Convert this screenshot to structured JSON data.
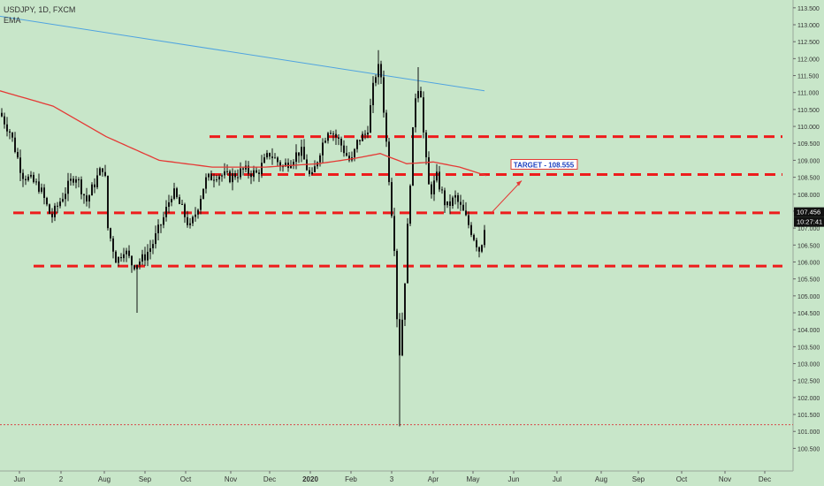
{
  "header": {
    "symbol_line": "USDJPY, 1D, FXCM",
    "indicator": "EMA"
  },
  "chart_data": {
    "type": "candlestick",
    "symbol": "USDJPY",
    "interval": "1D",
    "source": "FXCM",
    "ylim": [
      100.25,
      113.6
    ],
    "y_ticks": [
      "113.500",
      "113.000",
      "112.500",
      "112.000",
      "111.500",
      "111.000",
      "110.500",
      "110.000",
      "109.500",
      "109.000",
      "108.500",
      "108.000",
      "107.500",
      "107.000",
      "106.500",
      "106.000",
      "105.500",
      "105.000",
      "104.500",
      "104.000",
      "103.500",
      "103.000",
      "102.500",
      "102.000",
      "101.500",
      "101.000",
      "100.500"
    ],
    "x_ticks": [
      "Jun",
      "2",
      "Aug",
      "Sep",
      "Oct",
      "Nov",
      "Dec",
      "2020",
      "Feb",
      "3",
      "Apr",
      "May",
      "Jun",
      "Jul",
      "Aug",
      "Sep",
      "Oct",
      "Nov",
      "Dec"
    ],
    "price_label": "107.456",
    "price_value": 107.456,
    "time_label": "10:27:41",
    "target_label": "TARGET - 108.555",
    "target_value": 108.555,
    "horizontal_levels": [
      109.7,
      108.58,
      107.45,
      105.88
    ],
    "dotted_level": 101.2,
    "trendline": {
      "from": 113.25,
      "to": 111.05
    },
    "ema_anchors": [
      [
        0,
        111.05
      ],
      [
        60,
        110.6
      ],
      [
        120,
        109.7
      ],
      [
        180,
        109.0
      ],
      [
        240,
        108.8
      ],
      [
        300,
        108.8
      ],
      [
        360,
        108.9
      ],
      [
        400,
        109.05
      ],
      [
        430,
        109.2
      ],
      [
        460,
        108.9
      ],
      [
        490,
        108.95
      ],
      [
        520,
        108.8
      ],
      [
        550,
        108.55
      ]
    ],
    "candle_anchors": [
      [
        0,
        110.4
      ],
      [
        12,
        109.8
      ],
      [
        25,
        108.6
      ],
      [
        45,
        108.2
      ],
      [
        58,
        107.3
      ],
      [
        72,
        108.0
      ],
      [
        85,
        108.6
      ],
      [
        98,
        107.8
      ],
      [
        110,
        108.5
      ],
      [
        118,
        108.9
      ],
      [
        122,
        107.0
      ],
      [
        132,
        106.0
      ],
      [
        140,
        106.4
      ],
      [
        150,
        105.9
      ],
      [
        162,
        106.1
      ],
      [
        172,
        106.5
      ],
      [
        185,
        107.3
      ],
      [
        195,
        108.1
      ],
      [
        205,
        107.6
      ],
      [
        215,
        107.0
      ],
      [
        222,
        107.5
      ],
      [
        232,
        108.4
      ],
      [
        245,
        108.6
      ],
      [
        260,
        108.5
      ],
      [
        275,
        108.7
      ],
      [
        290,
        108.6
      ],
      [
        305,
        109.2
      ],
      [
        320,
        108.8
      ],
      [
        340,
        109.3
      ],
      [
        352,
        108.4
      ],
      [
        362,
        109.3
      ],
      [
        372,
        110.0
      ],
      [
        385,
        109.5
      ],
      [
        397,
        108.9
      ],
      [
        405,
        109.6
      ],
      [
        415,
        109.8
      ],
      [
        424,
        111.5
      ],
      [
        430,
        111.8
      ],
      [
        435,
        110.2
      ],
      [
        440,
        108.5
      ],
      [
        446,
        106.5
      ],
      [
        451,
        103.0
      ],
      [
        457,
        105.0
      ],
      [
        462,
        107.5
      ],
      [
        467,
        109.8
      ],
      [
        471,
        111.3
      ],
      [
        476,
        111.0
      ],
      [
        480,
        109.4
      ],
      [
        486,
        108.0
      ],
      [
        494,
        108.5
      ],
      [
        505,
        107.6
      ],
      [
        515,
        107.9
      ],
      [
        525,
        107.4
      ],
      [
        535,
        106.8
      ],
      [
        543,
        106.3
      ],
      [
        550,
        107.4
      ]
    ],
    "grid": false,
    "legend": "top-left"
  }
}
